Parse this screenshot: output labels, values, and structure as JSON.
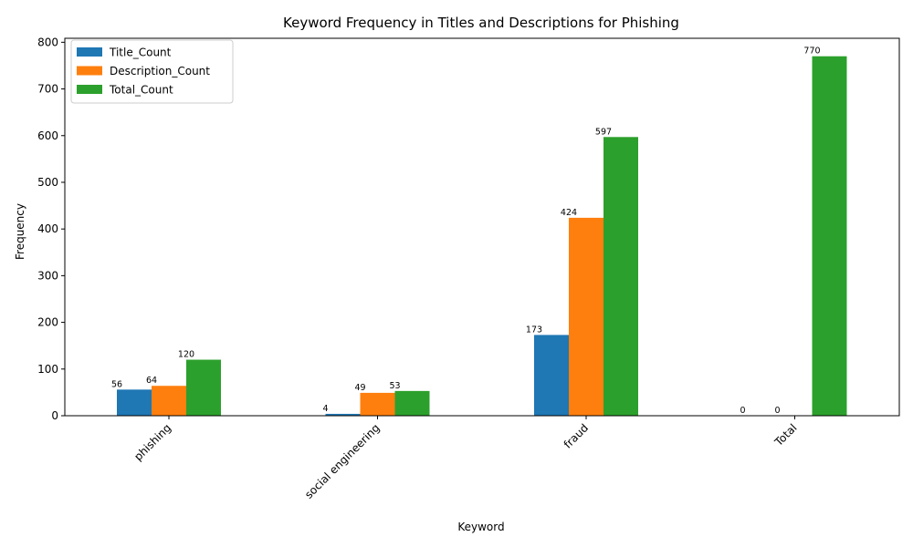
{
  "chart_data": {
    "type": "bar",
    "title": "Keyword Frequency in Titles and Descriptions for Phishing",
    "xlabel": "Keyword",
    "ylabel": "Frequency",
    "categories": [
      "phishing",
      "social engineering",
      "fraud",
      "Total"
    ],
    "series": [
      {
        "name": "Title_Count",
        "color": "#1f77b4",
        "values": [
          56,
          4,
          173,
          0
        ]
      },
      {
        "name": "Description_Count",
        "color": "#ff7f0e",
        "values": [
          64,
          49,
          424,
          0
        ]
      },
      {
        "name": "Total_Count",
        "color": "#2ca02c",
        "values": [
          120,
          53,
          597,
          770
        ]
      }
    ],
    "ylim": [
      0,
      808.5
    ],
    "yticks": [
      0,
      100,
      200,
      300,
      400,
      500,
      600,
      700,
      800
    ],
    "legend_position": "top-left",
    "grid": false
  }
}
